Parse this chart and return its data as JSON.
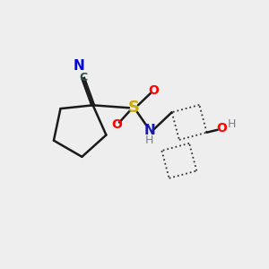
{
  "background_color": "#eeeeee",
  "bond_color": "#1a1a1a",
  "bond_width": 1.8,
  "atom_colors": {
    "C": "#2f4f4f",
    "N_blue": "#0000dd",
    "N_dark": "#1a1aaa",
    "O": "#ff0000",
    "S": "#ccaa00",
    "H": "#708090"
  },
  "figsize": [
    3.0,
    3.0
  ],
  "dpi": 100
}
